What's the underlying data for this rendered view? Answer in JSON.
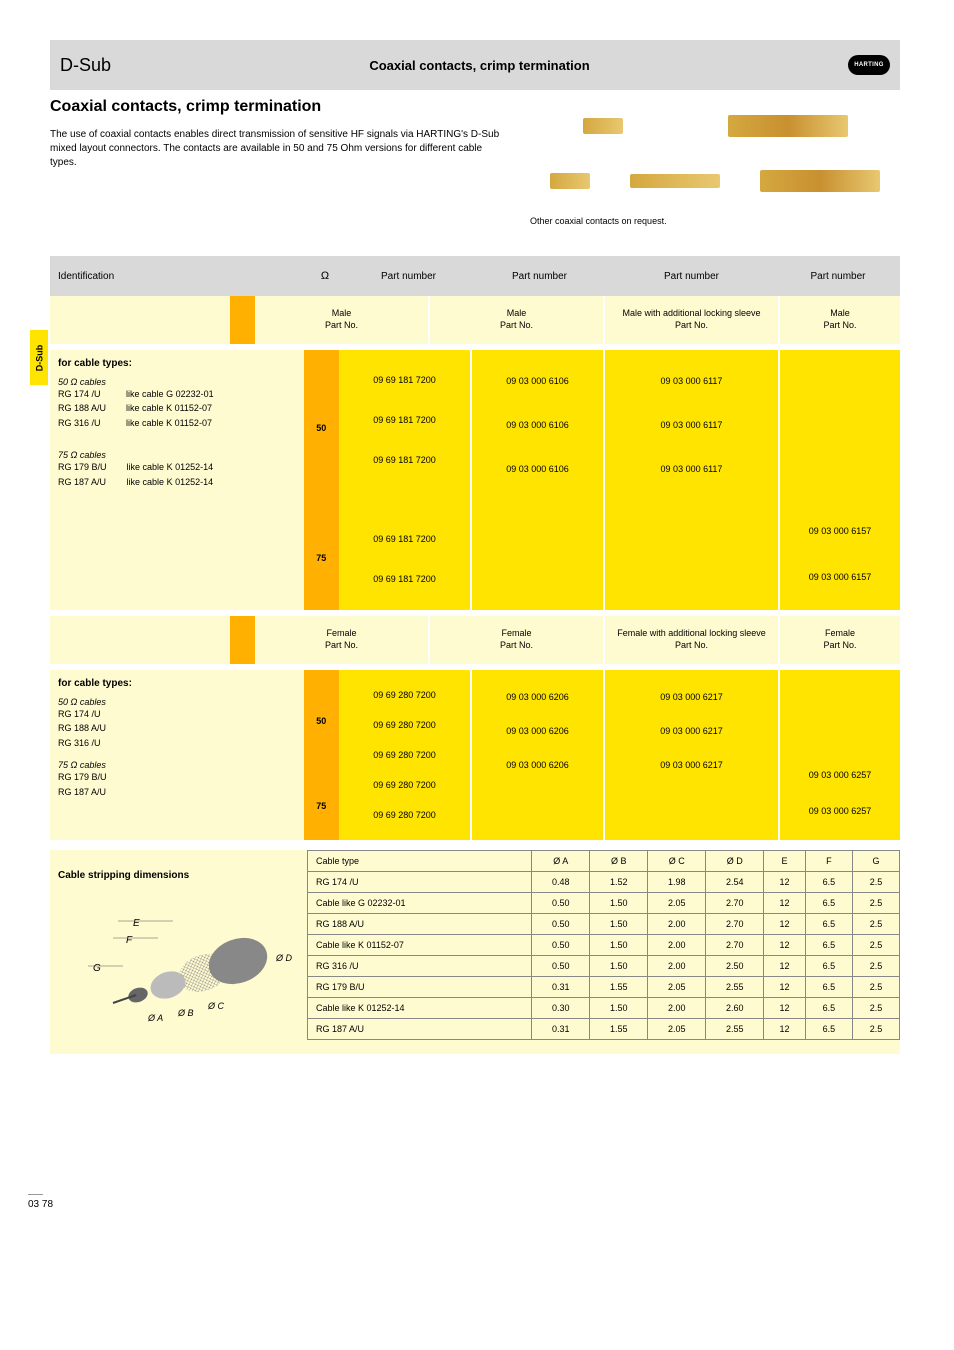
{
  "tab": "D-Sub",
  "header": {
    "left_title": "D-Sub",
    "right_title": "Coaxial contacts, crimp termination",
    "logo": "HARTING"
  },
  "intro": {
    "heading": "Coaxial contacts, crimp termination",
    "body": "The use of coaxial contacts enables direct transmission of sensitive HF signals via HARTING's D-Sub mixed layout connectors. The contacts are available in 50 and 75 Ohm versions for different cable types.",
    "note": "Other coaxial contacts on request."
  },
  "spec_header": {
    "label": "Identification",
    "col_a": "Part number",
    "col_b": "Part number",
    "col_c": "Part number",
    "col_d": "Part number"
  },
  "sub_headers": {
    "male": {
      "a": [
        "Male",
        "Part No."
      ],
      "b": [
        "Male",
        "Part No."
      ],
      "c": [
        "Male with additional locking sleeve",
        "Part No."
      ],
      "d": [
        "Male",
        "Part No."
      ]
    },
    "female": {
      "a": [
        "Female",
        "Part No."
      ],
      "b": [
        "Female",
        "Part No."
      ],
      "c": [
        "Female with additional locking sleeve",
        "Part No."
      ],
      "d": [
        "Female",
        "Part No."
      ]
    }
  },
  "impedance": {
    "male_1": "50",
    "male_2": "75",
    "female_1": "50",
    "female_2": "75"
  },
  "male_section": {
    "title": "for cable types:",
    "label_50": "50 Ω cables",
    "cables_50": [
      "RG 174 /U",
      "RG 188 A/U",
      "RG 316 /U"
    ],
    "label_75": "75 Ω cables",
    "cables_75": [
      "RG 179 B/U",
      "RG 187 A/U"
    ],
    "like_50": [
      "G 02232-01",
      "K 01152-07",
      "K 01152-07"
    ],
    "like_75": [
      "K 01252-14",
      "K 01252-14"
    ],
    "like_label": "like cable",
    "col_a": {
      "50": [
        "09 69 181 7200",
        "09 69 181 7200",
        "09 69 181 7200"
      ],
      "75_gap": "",
      "75": [
        "09 69 181 7200",
        "09 69 181 7200"
      ]
    },
    "col_b": {
      "50": [
        "09 03 000 6106",
        "09 03 000 6106",
        "09 03 000 6106"
      ],
      "75": [
        "",
        ""
      ]
    },
    "col_c": {
      "50": [
        "09 03 000 6117",
        "09 03 000 6117",
        "09 03 000 6117"
      ],
      "75": [
        "",
        ""
      ]
    },
    "col_d": {
      "50": [
        "",
        "",
        ""
      ],
      "75": [
        "09 03 000 6157",
        "09 03 000 6157"
      ]
    }
  },
  "female_section": {
    "title": "for cable types:",
    "label_50": "50 Ω cables",
    "cables_50": [
      "RG 174 /U",
      "RG 188 A/U",
      "RG 316 /U"
    ],
    "label_75": "75 Ω cables",
    "cables_75": [
      "RG 179 B/U",
      "RG 187 A/U"
    ],
    "col_a": {
      "50": [
        "09 69 280 7200",
        "09 69 280 7200",
        "09 69 280 7200"
      ],
      "75": [
        "09 69 280 7200",
        "09 69 280 7200"
      ]
    },
    "col_b": {
      "50": [
        "09 03 000 6206",
        "09 03 000 6206",
        "09 03 000 6206"
      ],
      "75": [
        "",
        ""
      ]
    },
    "col_c": {
      "50": [
        "09 03 000 6217",
        "09 03 000 6217",
        "09 03 000 6217"
      ],
      "75": [
        "",
        ""
      ]
    },
    "col_d": {
      "50": [
        "",
        "",
        ""
      ],
      "75": [
        "09 03 000 6257",
        "09 03 000 6257"
      ]
    }
  },
  "dims": {
    "heading": "Cable stripping dimensions",
    "columns": [
      "Cable type",
      "Ø A",
      "Ø B",
      "Ø C",
      "Ø D",
      "E",
      "F",
      "G"
    ],
    "rows": [
      [
        "RG 174 /U",
        "0.48",
        "1.52",
        "1.98",
        "2.54",
        "12",
        "6.5",
        "2.5"
      ],
      [
        "Cable like G 02232-01",
        "0.50",
        "1.50",
        "2.05",
        "2.70",
        "12",
        "6.5",
        "2.5"
      ],
      [
        "RG 188 A/U",
        "0.50",
        "1.50",
        "2.00",
        "2.70",
        "12",
        "6.5",
        "2.5"
      ],
      [
        "Cable like K 01152-07",
        "0.50",
        "1.50",
        "2.00",
        "2.70",
        "12",
        "6.5",
        "2.5"
      ],
      [
        "RG 316 /U",
        "0.50",
        "1.50",
        "2.00",
        "2.50",
        "12",
        "6.5",
        "2.5"
      ],
      [
        "RG 179 B/U",
        "0.31",
        "1.55",
        "2.05",
        "2.55",
        "12",
        "6.5",
        "2.5"
      ],
      [
        "Cable like K 01252-14",
        "0.30",
        "1.50",
        "2.00",
        "2.60",
        "12",
        "6.5",
        "2.5"
      ],
      [
        "RG 187 A/U",
        "0.31",
        "1.55",
        "2.05",
        "2.55",
        "12",
        "6.5",
        "2.5"
      ]
    ]
  },
  "page_number": "03 78"
}
